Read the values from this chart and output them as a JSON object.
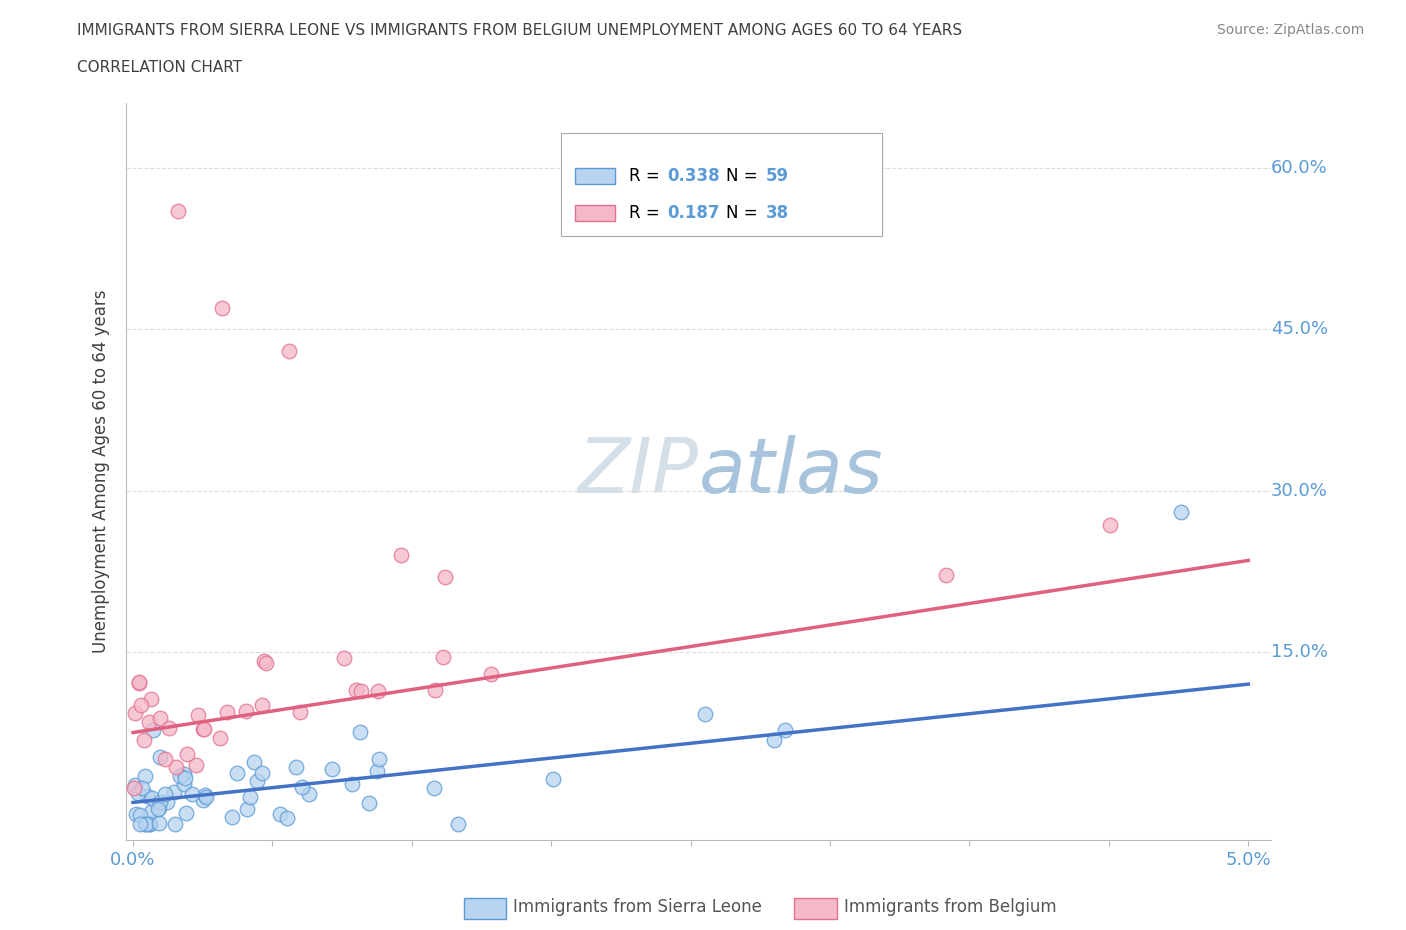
{
  "title_line1": "IMMIGRANTS FROM SIERRA LEONE VS IMMIGRANTS FROM BELGIUM UNEMPLOYMENT AMONG AGES 60 TO 64 YEARS",
  "title_line2": "CORRELATION CHART",
  "source_text": "Source: ZipAtlas.com",
  "ylabel": "Unemployment Among Ages 60 to 64 years",
  "xlim": [
    -0.0003,
    0.051
  ],
  "ylim": [
    -0.025,
    0.66
  ],
  "ytick_positions": [
    0.0,
    0.15,
    0.3,
    0.45,
    0.6
  ],
  "ytick_labels_right": [
    "",
    "15.0%",
    "30.0%",
    "45.0%",
    "60.0%"
  ],
  "xtick_positions": [
    0.0,
    0.00625,
    0.0125,
    0.01875,
    0.025,
    0.03125,
    0.0375,
    0.04375,
    0.05
  ],
  "xtick_labels": [
    "0.0%",
    "",
    "",
    "",
    "",
    "",
    "",
    "",
    "5.0%"
  ],
  "sierra_leone_R": 0.338,
  "sierra_leone_N": 59,
  "belgium_R": 0.187,
  "belgium_N": 38,
  "sl_face_color": "#b8d4f0",
  "sl_edge_color": "#5b9bd5",
  "be_face_color": "#f5b8c8",
  "be_edge_color": "#e07090",
  "sl_line_color": "#4472c4",
  "be_line_color": "#e06080",
  "watermark_color": "#cdd9e8",
  "title_color": "#404040",
  "ylabel_color": "#404040",
  "tick_label_color": "#5b9bd5",
  "grid_color": "#dddddd",
  "background_color": "#ffffff",
  "legend_border_color": "#aaaaaa",
  "source_color": "#888888"
}
